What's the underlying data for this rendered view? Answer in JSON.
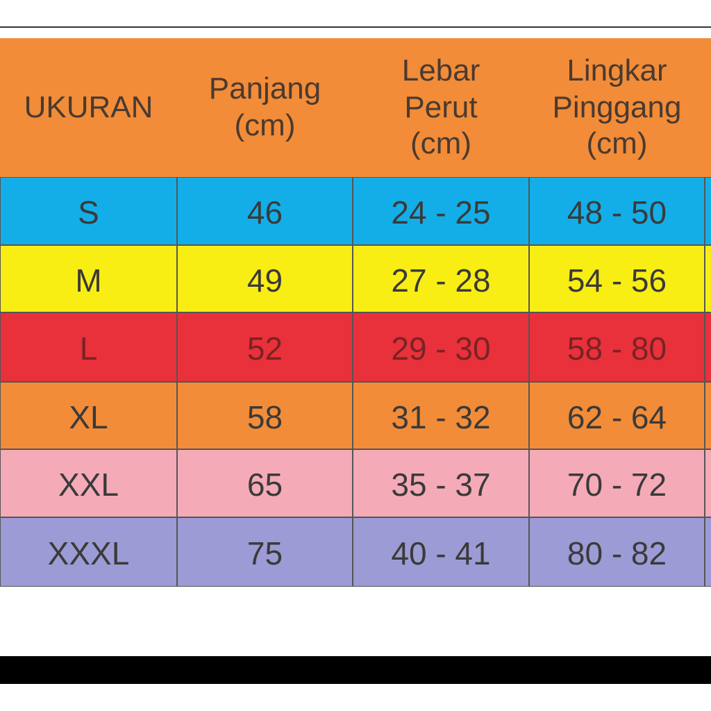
{
  "table": {
    "header": [
      [
        "UKURAN"
      ],
      [
        "Panjang",
        "(cm)"
      ],
      [
        "Lebar",
        "Perut",
        "(cm)"
      ],
      [
        "Lingkar",
        "Pinggang",
        "(cm)"
      ]
    ],
    "rows": [
      [
        "S",
        "46",
        "24 - 25",
        "48 - 50"
      ],
      [
        "M",
        "49",
        "27 - 28",
        "54 - 56"
      ],
      [
        "L",
        "52",
        "29 - 30",
        "58 - 80"
      ],
      [
        "XL",
        "58",
        "31 - 32",
        "62 - 64"
      ],
      [
        "XXL",
        "65",
        "35 - 37",
        "70 - 72"
      ],
      [
        "XXXL",
        "75",
        "40 - 41",
        "80 - 82"
      ]
    ]
  }
}
